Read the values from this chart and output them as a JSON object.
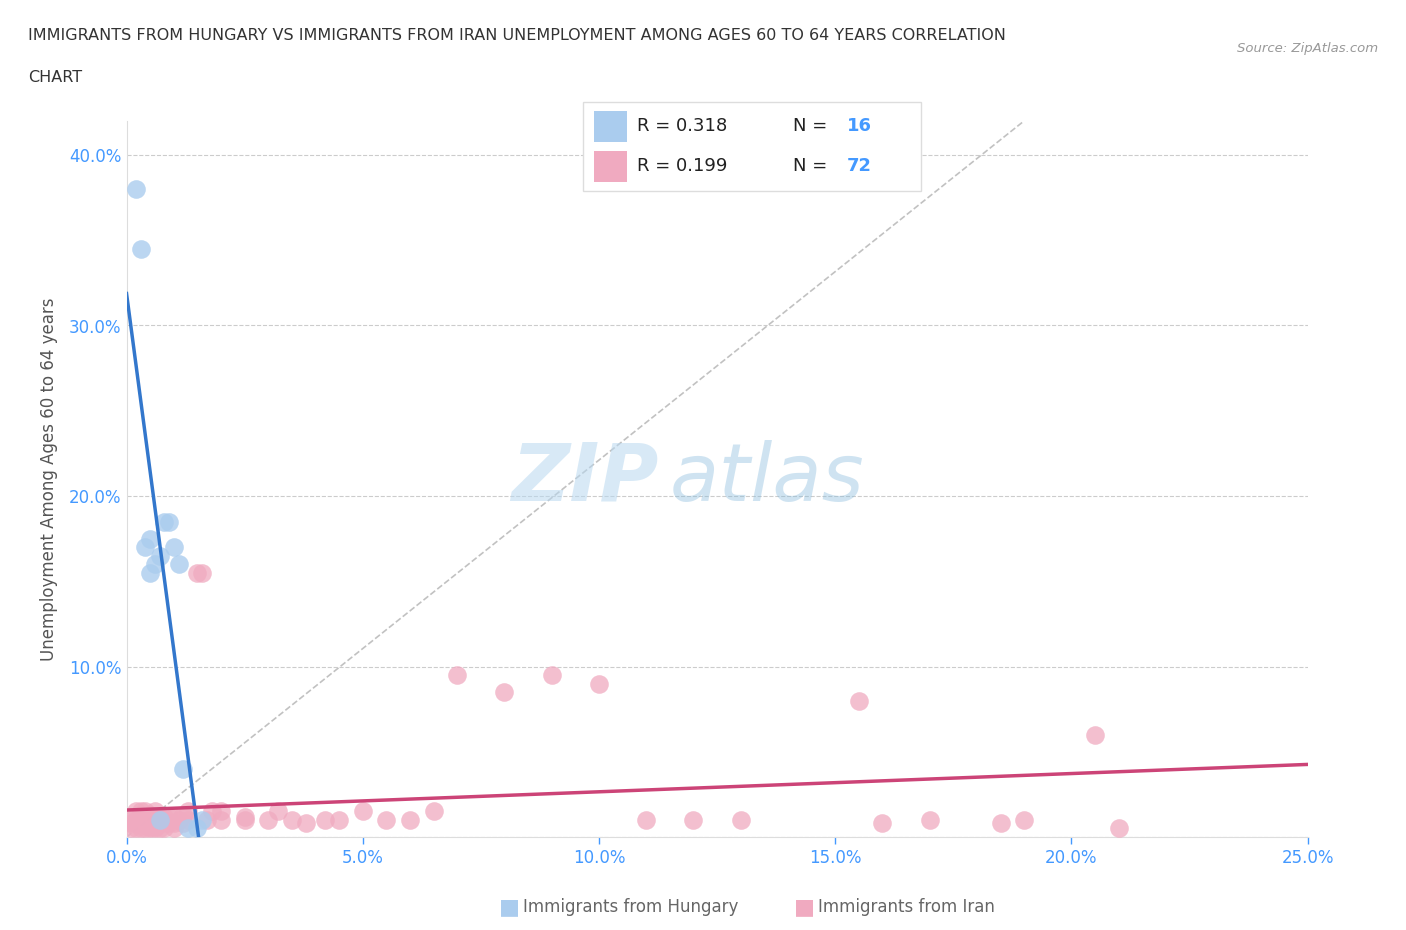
{
  "title_line1": "IMMIGRANTS FROM HUNGARY VS IMMIGRANTS FROM IRAN UNEMPLOYMENT AMONG AGES 60 TO 64 YEARS CORRELATION",
  "title_line2": "CHART",
  "source": "Source: ZipAtlas.com",
  "ylabel": "Unemployment Among Ages 60 to 64 years",
  "xlim": [
    0.0,
    0.25
  ],
  "ylim": [
    0.0,
    0.42
  ],
  "xticks": [
    0.0,
    0.05,
    0.1,
    0.15,
    0.2,
    0.25
  ],
  "xtick_labels": [
    "0.0%",
    "5.0%",
    "10.0%",
    "15.0%",
    "20.0%",
    "25.0%"
  ],
  "yticks": [
    0.0,
    0.1,
    0.2,
    0.3,
    0.4
  ],
  "ytick_labels": [
    "",
    "10.0%",
    "20.0%",
    "30.0%",
    "40.0%"
  ],
  "R_hungary": 0.318,
  "N_hungary": 16,
  "R_iran": 0.199,
  "N_iran": 72,
  "hungary_color": "#aaccee",
  "iran_color": "#f0aac0",
  "hungary_line_color": "#3377cc",
  "iran_line_color": "#cc4477",
  "ref_line_color": "#bbbbbb",
  "background_color": "#ffffff",
  "grid_color": "#cccccc",
  "watermark_zip": "ZIP",
  "watermark_atlas": "atlas",
  "tick_color": "#4499ff",
  "legend_border_color": "#dddddd",
  "source_color": "#999999",
  "ylabel_color": "#555555",
  "title_color": "#333333",
  "bottom_legend_color": "#666666",
  "hungary_x": [
    0.002,
    0.003,
    0.004,
    0.005,
    0.005,
    0.006,
    0.007,
    0.008,
    0.009,
    0.01,
    0.011,
    0.012,
    0.013,
    0.015,
    0.016,
    0.007
  ],
  "hungary_y": [
    0.38,
    0.345,
    0.17,
    0.175,
    0.155,
    0.16,
    0.165,
    0.185,
    0.185,
    0.17,
    0.16,
    0.04,
    0.005,
    0.005,
    0.01,
    0.01
  ],
  "iran_x": [
    0.001,
    0.001,
    0.001,
    0.002,
    0.002,
    0.002,
    0.002,
    0.003,
    0.003,
    0.003,
    0.003,
    0.004,
    0.004,
    0.004,
    0.004,
    0.005,
    0.005,
    0.005,
    0.005,
    0.005,
    0.006,
    0.006,
    0.006,
    0.006,
    0.007,
    0.007,
    0.007,
    0.008,
    0.008,
    0.008,
    0.009,
    0.009,
    0.01,
    0.01,
    0.01,
    0.011,
    0.012,
    0.012,
    0.013,
    0.013,
    0.015,
    0.016,
    0.017,
    0.018,
    0.02,
    0.02,
    0.025,
    0.025,
    0.03,
    0.032,
    0.035,
    0.038,
    0.042,
    0.045,
    0.05,
    0.055,
    0.06,
    0.065,
    0.07,
    0.08,
    0.09,
    0.1,
    0.11,
    0.12,
    0.13,
    0.155,
    0.16,
    0.17,
    0.185,
    0.19,
    0.205,
    0.21
  ],
  "iran_y": [
    0.005,
    0.008,
    0.01,
    0.005,
    0.008,
    0.01,
    0.015,
    0.005,
    0.008,
    0.012,
    0.015,
    0.005,
    0.008,
    0.012,
    0.015,
    0.005,
    0.006,
    0.008,
    0.01,
    0.013,
    0.005,
    0.006,
    0.01,
    0.015,
    0.005,
    0.008,
    0.012,
    0.005,
    0.008,
    0.012,
    0.008,
    0.012,
    0.005,
    0.008,
    0.012,
    0.01,
    0.008,
    0.013,
    0.01,
    0.015,
    0.155,
    0.155,
    0.01,
    0.015,
    0.01,
    0.015,
    0.01,
    0.012,
    0.01,
    0.015,
    0.01,
    0.008,
    0.01,
    0.01,
    0.015,
    0.01,
    0.01,
    0.015,
    0.095,
    0.085,
    0.095,
    0.09,
    0.01,
    0.01,
    0.01,
    0.08,
    0.008,
    0.01,
    0.008,
    0.01,
    0.06,
    0.005
  ]
}
